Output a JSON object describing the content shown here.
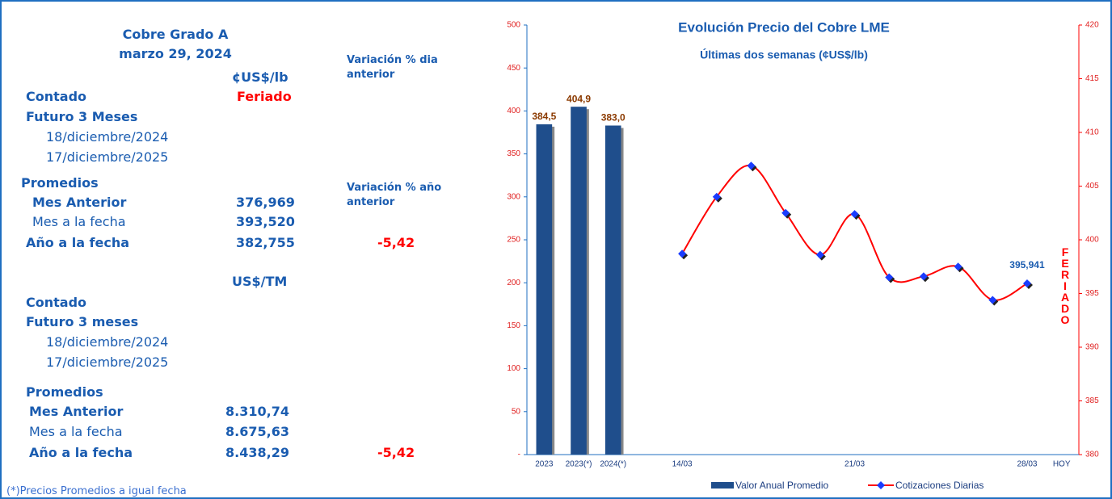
{
  "panel": {
    "title": "Cobre Grado A",
    "date": "marzo 29, 2024",
    "unit_lb": "¢US$/lb",
    "var_day": "Variación % dia anterior",
    "var_year": "Variación % año anterior",
    "unit_tm": "US$/TM",
    "footnote": "(*)Precios Promedios a igual  fecha",
    "rows_lb": [
      {
        "label": "Contado",
        "value": "Feriado"
      },
      {
        "label": "Futuro 3 Meses"
      },
      {
        "label": "18/diciembre/2024"
      },
      {
        "label": "17/diciembre/2025"
      },
      {
        "label": "Promedios"
      },
      {
        "label": "Mes Anterior",
        "value": "376,969"
      },
      {
        "label": "Mes a la fecha",
        "value": "393,520"
      },
      {
        "label": "Año a la fecha",
        "value": "382,755",
        "change": "-5,42"
      }
    ],
    "rows_tm": [
      {
        "label": "Contado"
      },
      {
        "label": "Futuro 3 meses"
      },
      {
        "label": "18/diciembre/2024"
      },
      {
        "label": "17/diciembre/2025"
      },
      {
        "label": "Promedios"
      },
      {
        "label": "Mes Anterior",
        "value": "8.310,74"
      },
      {
        "label": "Mes a la fecha",
        "value": "8.675,63"
      },
      {
        "label": "Año a la fecha",
        "value": "8.438,29",
        "change": "-5,42"
      }
    ]
  },
  "chart_data": {
    "type": "bar_line",
    "title": "Evolución Precio del Cobre LME",
    "subtitle": "Últimas dos semanas (¢US$/lb)",
    "annotation": "FERIADO",
    "categories": [
      "2023",
      "2023(*)",
      "2024(*)",
      null,
      "14/03",
      null,
      null,
      null,
      null,
      "21/03",
      null,
      null,
      null,
      null,
      "28/03",
      "HOY"
    ],
    "series": [
      {
        "name": "Valor Anual Promedio",
        "color": "#1f4e8c",
        "type": "bar",
        "values": [
          384.5,
          404.9,
          383.0,
          null,
          null,
          null,
          null,
          null,
          null,
          null,
          null,
          null,
          null,
          null,
          null,
          null
        ],
        "value_labels": [
          "384,5",
          "404,9",
          "383,0",
          null,
          null,
          null,
          null,
          null,
          null,
          null,
          null,
          null,
          null,
          null,
          null,
          null
        ]
      },
      {
        "name": "Cotizaciones Diarias",
        "color": "#ff0000",
        "marker_color": "#1a3cff",
        "type": "line",
        "axis": "y2",
        "values": [
          null,
          null,
          null,
          null,
          398.7,
          404.0,
          406.9,
          402.5,
          398.6,
          402.4,
          396.5,
          396.6,
          397.5,
          394.4,
          395.941,
          null
        ],
        "value_labels": [
          null,
          null,
          null,
          null,
          null,
          null,
          null,
          null,
          null,
          null,
          null,
          null,
          null,
          null,
          "395,941",
          null
        ]
      }
    ],
    "ylim": [
      0,
      500
    ],
    "yticks": [
      {
        "value": 0,
        "label": "-"
      },
      50,
      100,
      150,
      200,
      250,
      300,
      350,
      400,
      450,
      500
    ],
    "y2lim": [
      380,
      420
    ],
    "y2ticks": [
      380,
      385,
      390,
      395,
      400,
      405,
      410,
      415,
      420
    ],
    "legend": "bottom"
  }
}
